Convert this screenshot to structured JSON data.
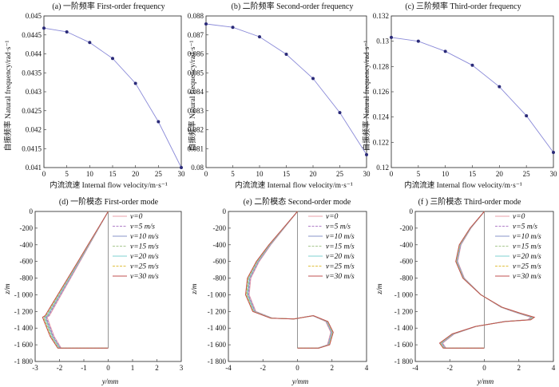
{
  "chart_data": [
    {
      "type": "line",
      "title": "(a) 一阶频率 First-order frequency",
      "xlabel": "内流流速 Internal flow velocity/m·s⁻¹",
      "ylabel": "自振频率 Natural frequency/rad·s⁻¹",
      "xlim": [
        0,
        30
      ],
      "ylim": [
        0.041,
        0.045
      ],
      "xticks": [
        "0",
        "5",
        "10",
        "15",
        "20",
        "25",
        "30"
      ],
      "yticks": [
        "0.041",
        "0.0415",
        "0.042",
        "0.0425",
        "0.043",
        "0.0435",
        "0.044",
        "0.0445",
        "0.045"
      ],
      "series": [
        {
          "name": "first-order",
          "x": [
            0,
            5,
            10,
            15,
            20,
            25,
            30
          ],
          "y": [
            0.04468,
            0.04458,
            0.0443,
            0.04388,
            0.04322,
            0.04221,
            0.041
          ]
        }
      ]
    },
    {
      "type": "line",
      "title": "(b) 二阶频率 Second-order frequency",
      "xlabel": "内流流速 Internal flow velocity/m·s⁻¹",
      "ylabel": "自振频率 Natural frequency/rad·s⁻¹",
      "xlim": [
        0,
        30
      ],
      "ylim": [
        0.08,
        0.088
      ],
      "xticks": [
        "0",
        "5",
        "10",
        "15",
        "20",
        "25",
        "30"
      ],
      "yticks": [
        "0.08",
        "0.081",
        "0.082",
        "0.083",
        "0.084",
        "0.085",
        "0.086",
        "0.087",
        "0.088"
      ],
      "series": [
        {
          "name": "second-order",
          "x": [
            0,
            5,
            10,
            15,
            20,
            25,
            30
          ],
          "y": [
            0.08758,
            0.0874,
            0.0869,
            0.08598,
            0.0847,
            0.0829,
            0.08068
          ]
        }
      ]
    },
    {
      "type": "line",
      "title": "(c) 三阶频率 Third-order frequency",
      "xlabel": "内流流速 Internal flow velocity/m·s⁻¹",
      "ylabel": "自振频率 Natural frequency/rad·s⁻¹",
      "xlim": [
        0,
        30
      ],
      "ylim": [
        0.12,
        0.132
      ],
      "xticks": [
        "0",
        "5",
        "10",
        "15",
        "20",
        "25",
        "30"
      ],
      "yticks": [
        "0.12",
        "0.122",
        "0.124",
        "0.126",
        "0.128",
        "0.13",
        "0.132"
      ],
      "series": [
        {
          "name": "third-order",
          "x": [
            0,
            5,
            10,
            15,
            20,
            25,
            30
          ],
          "y": [
            0.1303,
            0.13,
            0.1292,
            0.1281,
            0.1264,
            0.1241,
            0.1212
          ]
        }
      ]
    },
    {
      "type": "line",
      "title": "(d) 一阶模态 First-order mode",
      "xlabel": "y/mm",
      "ylabel": "z/m",
      "xlim": [
        -3,
        3
      ],
      "ylim": [
        -1800,
        0
      ],
      "xticks": [
        "-3",
        "-2",
        "-1",
        "0",
        "1",
        "2",
        "3"
      ],
      "yticks": [
        "0",
        "-200",
        "-400",
        "-600",
        "-800",
        "-1 000",
        "-1 200",
        "-1 400",
        "-1 600",
        "-1 800"
      ],
      "legend_position": "top-right",
      "series": [
        {
          "name": "v=0",
          "color": "#e8a0a8"
        },
        {
          "name": "v=5 m/s",
          "color": "#b07fc8"
        },
        {
          "name": "v=10 m/s",
          "color": "#8a96c8"
        },
        {
          "name": "v=15 m/s",
          "color": "#a8c890"
        },
        {
          "name": "v=20 m/s",
          "color": "#7fd0d0"
        },
        {
          "name": "v=25 m/s",
          "color": "#e0c040"
        },
        {
          "name": "v=30 m/s",
          "color": "#c05050"
        }
      ],
      "curve": {
        "y": [
          0,
          -0.4,
          -0.8,
          -1.2,
          -1.6,
          -2.0,
          -2.3,
          -2.5,
          -2.6,
          -2.55,
          -2.3,
          -2.0,
          -1.5,
          -1.0,
          -0.5,
          0
        ],
        "z": [
          0,
          -200,
          -400,
          -600,
          -800,
          -1000,
          -1150,
          -1250,
          -1270,
          -1310,
          -1500,
          -1640,
          -1640,
          -1640,
          -1640,
          -1640
        ]
      }
    },
    {
      "type": "line",
      "title": "(e) 二阶模态 Second-order mode",
      "xlabel": "y/mm",
      "ylabel": "z/m",
      "xlim": [
        -4,
        4
      ],
      "ylim": [
        -1800,
        0
      ],
      "xticks": [
        "-4",
        "-2",
        "0",
        "2",
        "4"
      ],
      "yticks": [
        "0",
        "-200",
        "-400",
        "-600",
        "-800",
        "-1 000",
        "-1 200",
        "-1 400",
        "-1 600",
        "-1 800"
      ],
      "legend_position": "top-right",
      "series": [
        {
          "name": "v=0",
          "color": "#e8a0a8"
        },
        {
          "name": "v=5 m/s",
          "color": "#b07fc8"
        },
        {
          "name": "v=10 m/s",
          "color": "#8a96c8"
        },
        {
          "name": "v=15 m/s",
          "color": "#a8c890"
        },
        {
          "name": "v=20 m/s",
          "color": "#7fd0d0"
        },
        {
          "name": "v=25 m/s",
          "color": "#e0c040"
        },
        {
          "name": "v=30 m/s",
          "color": "#c05050"
        }
      ],
      "curve": {
        "y": [
          0,
          -0.8,
          -1.6,
          -2.3,
          -2.8,
          -2.9,
          -2.5,
          -1.5,
          -0.2,
          0.9,
          1.7,
          2.0,
          1.8,
          1.2,
          0.5,
          0
        ],
        "z": [
          0,
          -200,
          -400,
          -600,
          -800,
          -1000,
          -1200,
          -1280,
          -1290,
          -1250,
          -1320,
          -1450,
          -1600,
          -1640,
          -1640,
          -1640
        ]
      }
    },
    {
      "type": "line",
      "title": "(f ) 三阶模态 Third-order mode",
      "xlabel": "y/mm",
      "ylabel": "z/m",
      "xlim": [
        -4,
        4
      ],
      "ylim": [
        -1800,
        0
      ],
      "xticks": [
        "-4",
        "-2",
        "0",
        "2",
        "4"
      ],
      "yticks": [
        "0",
        "-200",
        "-400",
        "-600",
        "-800",
        "-1 000",
        "-1 200",
        "-1 400",
        "-1 600",
        "-1 800"
      ],
      "legend_position": "top-right",
      "series": [
        {
          "name": "v=0",
          "color": "#e8a0a8"
        },
        {
          "name": "v=5 m/s",
          "color": "#b07fc8"
        },
        {
          "name": "v=10 m/s",
          "color": "#8a96c8"
        },
        {
          "name": "v=15 m/s",
          "color": "#a8c890"
        },
        {
          "name": "v=20 m/s",
          "color": "#7fd0d0"
        },
        {
          "name": "v=25 m/s",
          "color": "#e0c040"
        },
        {
          "name": "v=30 m/s",
          "color": "#c05050"
        }
      ],
      "curve": {
        "y": [
          0,
          -0.8,
          -1.4,
          -1.6,
          -1.2,
          -0.2,
          1.0,
          2.0,
          2.8,
          2.6,
          1.2,
          -0.5,
          -1.8,
          -2.5,
          -2.3,
          -1.5,
          -0.5,
          0
        ],
        "z": [
          0,
          -200,
          -400,
          -600,
          -800,
          -1000,
          -1150,
          -1220,
          -1270,
          -1300,
          -1320,
          -1380,
          -1470,
          -1580,
          -1640,
          -1640,
          -1640,
          -1640
        ]
      }
    }
  ]
}
